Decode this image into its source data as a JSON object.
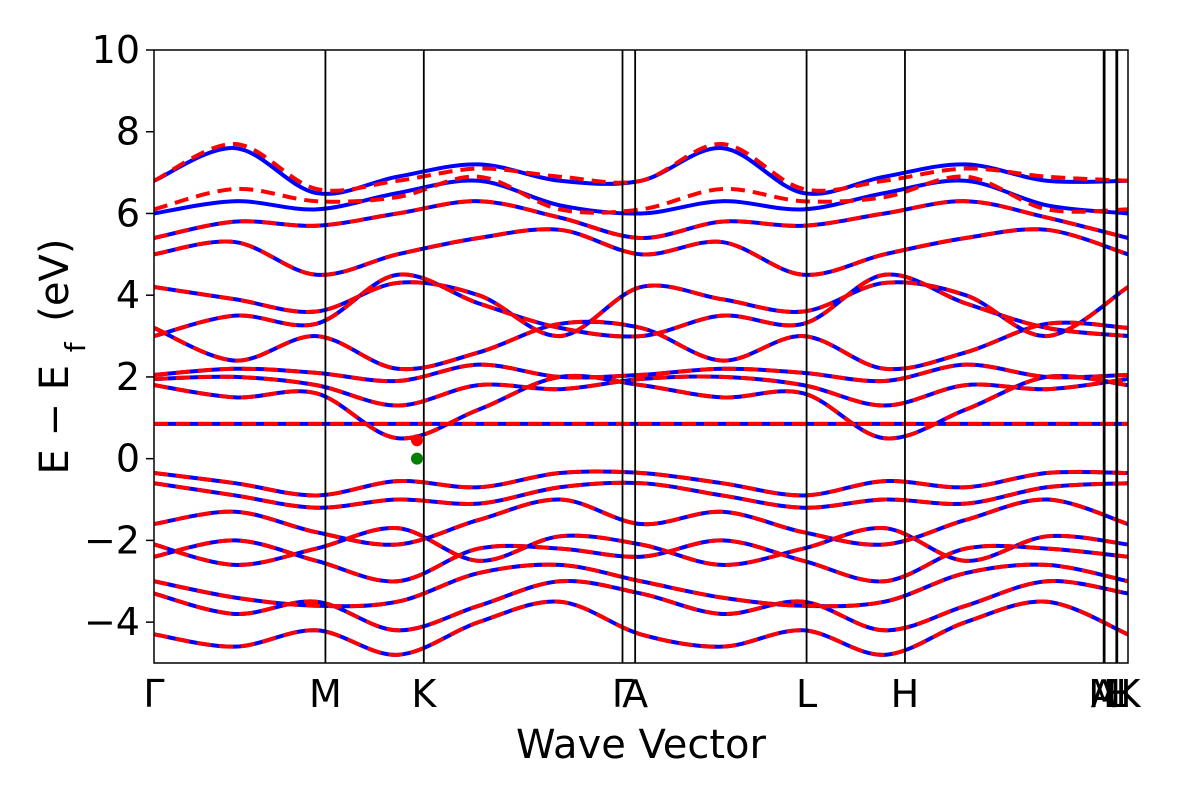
{
  "chart_data": {
    "type": "line",
    "xlabel": "Wave Vector",
    "ylabel": {
      "base": "E − E",
      "sub": "f",
      "unit": "(eV)"
    },
    "ylim": [
      -5,
      10
    ],
    "xlim": [
      0,
      1
    ],
    "yticks": [
      {
        "value": -4,
        "label": "−4"
      },
      {
        "value": -2,
        "label": "−2"
      },
      {
        "value": 0,
        "label": "0"
      },
      {
        "value": 2,
        "label": "2"
      },
      {
        "value": 4,
        "label": "4"
      },
      {
        "value": 6,
        "label": "6"
      },
      {
        "value": 8,
        "label": "8"
      },
      {
        "value": 10,
        "label": "10"
      }
    ],
    "kpoints": [
      {
        "label": "Γ",
        "x": 0.0
      },
      {
        "label": "M",
        "x": 0.176
      },
      {
        "label": "K",
        "x": 0.277
      },
      {
        "label": "Γ",
        "x": 0.481
      },
      {
        "label": "A",
        "x": 0.494
      },
      {
        "label": "L",
        "x": 0.67
      },
      {
        "label": "H",
        "x": 0.771
      },
      {
        "label": "A",
        "x": 0.975
      },
      {
        "label": "M",
        "x": 0.976
      },
      {
        "label": "L",
        "x": 0.988
      },
      {
        "label": "H",
        "x": 0.989
      },
      {
        "label": "K",
        "x": 1.0
      }
    ],
    "series": [
      {
        "color": "#0000ff",
        "dashed": false,
        "bands": [
          [
            -0.35,
            -0.6,
            -0.9,
            -0.55,
            -0.7,
            -0.35,
            -0.35,
            -0.6,
            -0.9,
            -0.55,
            -0.7,
            -0.35,
            -0.35
          ],
          [
            -0.6,
            -0.9,
            -1.2,
            -1.0,
            -1.1,
            -0.7,
            -0.6,
            -0.9,
            -1.2,
            -1.0,
            -1.1,
            -0.7,
            -0.6
          ],
          [
            -1.6,
            -1.3,
            -1.8,
            -2.1,
            -1.5,
            -1.0,
            -1.6,
            -1.3,
            -1.8,
            -2.1,
            -1.5,
            -1.0,
            -1.6
          ],
          [
            -2.1,
            -2.6,
            -2.2,
            -1.7,
            -2.5,
            -1.9,
            -2.1,
            -2.6,
            -2.2,
            -1.7,
            -2.5,
            -1.9,
            -2.1
          ],
          [
            -2.4,
            -2.0,
            -2.5,
            -3.0,
            -2.2,
            -2.2,
            -2.4,
            -2.0,
            -2.5,
            -3.0,
            -2.2,
            -2.2,
            -2.4
          ],
          [
            -3.0,
            -3.4,
            -3.6,
            -3.5,
            -2.8,
            -2.6,
            -3.0,
            -3.4,
            -3.6,
            -3.5,
            -2.8,
            -2.6,
            -3.0
          ],
          [
            -3.3,
            -3.8,
            -3.5,
            -4.2,
            -3.6,
            -3.0,
            -3.3,
            -3.8,
            -3.5,
            -4.2,
            -3.6,
            -3.0,
            -3.3
          ],
          [
            -4.3,
            -4.6,
            -4.2,
            -4.8,
            -4.0,
            -3.5,
            -4.3,
            -4.6,
            -4.2,
            -4.8,
            -4.0,
            -3.5,
            -4.3
          ],
          [
            0.85,
            0.85,
            0.85,
            0.85,
            0.85,
            0.85,
            0.85,
            0.85,
            0.85,
            0.85,
            0.85,
            0.85,
            0.85
          ],
          [
            1.8,
            1.5,
            1.6,
            0.5,
            1.2,
            2.0,
            1.8,
            1.5,
            1.6,
            0.5,
            1.2,
            2.0,
            1.8
          ],
          [
            1.95,
            2.0,
            1.8,
            1.3,
            1.8,
            1.7,
            1.95,
            2.0,
            1.8,
            1.3,
            1.8,
            1.7,
            1.95
          ],
          [
            2.05,
            2.2,
            2.1,
            1.9,
            2.3,
            2.0,
            2.05,
            2.2,
            2.1,
            1.9,
            2.3,
            2.0,
            2.05
          ],
          [
            3.2,
            2.4,
            3.0,
            2.2,
            2.6,
            3.3,
            3.2,
            2.4,
            3.0,
            2.2,
            2.6,
            3.3,
            3.2
          ],
          [
            3.0,
            3.5,
            3.3,
            4.5,
            3.8,
            3.2,
            3.0,
            3.5,
            3.3,
            4.5,
            3.8,
            3.2,
            3.0
          ],
          [
            4.2,
            3.9,
            3.6,
            4.3,
            4.0,
            3.0,
            4.2,
            3.9,
            3.6,
            4.3,
            4.0,
            3.0,
            4.2
          ],
          [
            5.0,
            5.3,
            4.5,
            5.0,
            5.4,
            5.6,
            5.0,
            5.3,
            4.5,
            5.0,
            5.4,
            5.6,
            5.0
          ],
          [
            5.4,
            5.8,
            5.7,
            6.0,
            6.3,
            5.9,
            5.4,
            5.8,
            5.7,
            6.0,
            6.3,
            5.9,
            5.4
          ],
          [
            6.0,
            6.3,
            6.1,
            6.5,
            6.8,
            6.2,
            6.0,
            6.3,
            6.1,
            6.5,
            6.8,
            6.2,
            6.0
          ],
          [
            6.8,
            7.6,
            6.5,
            6.9,
            7.2,
            6.8,
            6.8,
            7.6,
            6.5,
            6.9,
            7.2,
            6.8,
            6.8
          ]
        ]
      },
      {
        "color": "#ff0000",
        "dashed": true,
        "bands": [
          [
            -0.35,
            -0.6,
            -0.9,
            -0.55,
            -0.7,
            -0.35,
            -0.35,
            -0.6,
            -0.9,
            -0.55,
            -0.7,
            -0.35,
            -0.35
          ],
          [
            -0.6,
            -0.9,
            -1.2,
            -1.0,
            -1.1,
            -0.7,
            -0.6,
            -0.9,
            -1.2,
            -1.0,
            -1.1,
            -0.7,
            -0.6
          ],
          [
            -1.6,
            -1.3,
            -1.8,
            -2.1,
            -1.5,
            -1.0,
            -1.6,
            -1.3,
            -1.8,
            -2.1,
            -1.5,
            -1.0,
            -1.6
          ],
          [
            -2.1,
            -2.6,
            -2.2,
            -1.7,
            -2.5,
            -1.9,
            -2.1,
            -2.6,
            -2.2,
            -1.7,
            -2.5,
            -1.9,
            -2.1
          ],
          [
            -2.4,
            -2.0,
            -2.5,
            -3.0,
            -2.2,
            -2.2,
            -2.4,
            -2.0,
            -2.5,
            -3.0,
            -2.2,
            -2.2,
            -2.4
          ],
          [
            -3.0,
            -3.4,
            -3.6,
            -3.5,
            -2.8,
            -2.6,
            -3.0,
            -3.4,
            -3.6,
            -3.5,
            -2.8,
            -2.6,
            -3.0
          ],
          [
            -3.3,
            -3.8,
            -3.5,
            -4.2,
            -3.6,
            -3.0,
            -3.3,
            -3.8,
            -3.5,
            -4.2,
            -3.6,
            -3.0,
            -3.3
          ],
          [
            -4.3,
            -4.6,
            -4.2,
            -4.8,
            -4.0,
            -3.5,
            -4.3,
            -4.6,
            -4.2,
            -4.8,
            -4.0,
            -3.5,
            -4.3
          ],
          [
            0.85,
            0.85,
            0.85,
            0.85,
            0.85,
            0.85,
            0.85,
            0.85,
            0.85,
            0.85,
            0.85,
            0.85,
            0.85
          ],
          [
            1.8,
            1.5,
            1.6,
            0.5,
            1.2,
            2.0,
            1.8,
            1.5,
            1.6,
            0.5,
            1.2,
            2.0,
            1.8
          ],
          [
            1.95,
            2.0,
            1.8,
            1.3,
            1.8,
            1.7,
            1.95,
            2.0,
            1.8,
            1.3,
            1.8,
            1.7,
            1.95
          ],
          [
            2.05,
            2.2,
            2.1,
            1.9,
            2.3,
            2.0,
            2.05,
            2.2,
            2.1,
            1.9,
            2.3,
            2.0,
            2.05
          ],
          [
            3.2,
            2.4,
            3.0,
            2.2,
            2.6,
            3.3,
            3.2,
            2.4,
            3.0,
            2.2,
            2.6,
            3.3,
            3.2
          ],
          [
            3.0,
            3.5,
            3.3,
            4.5,
            3.8,
            3.2,
            3.0,
            3.5,
            3.3,
            4.5,
            3.8,
            3.2,
            3.0
          ],
          [
            4.2,
            3.9,
            3.6,
            4.3,
            4.0,
            3.0,
            4.2,
            3.9,
            3.6,
            4.3,
            4.0,
            3.0,
            4.2
          ],
          [
            5.0,
            5.3,
            4.5,
            5.0,
            5.4,
            5.6,
            5.0,
            5.3,
            4.5,
            5.0,
            5.4,
            5.6,
            5.0
          ],
          [
            5.4,
            5.8,
            5.7,
            6.0,
            6.3,
            5.9,
            5.4,
            5.8,
            5.7,
            6.0,
            6.3,
            5.9,
            5.4
          ],
          [
            6.1,
            6.6,
            6.3,
            6.4,
            6.9,
            6.1,
            6.1,
            6.6,
            6.3,
            6.4,
            6.9,
            6.1,
            6.1
          ],
          [
            6.8,
            7.7,
            6.6,
            6.8,
            7.1,
            6.9,
            6.8,
            7.7,
            6.6,
            6.8,
            7.1,
            6.9,
            6.8
          ]
        ]
      }
    ],
    "markers": [
      {
        "x": 0.27,
        "y": 0.45,
        "color": "#ff0000"
      },
      {
        "x": 0.27,
        "y": 0.0,
        "color": "#008000"
      }
    ]
  }
}
